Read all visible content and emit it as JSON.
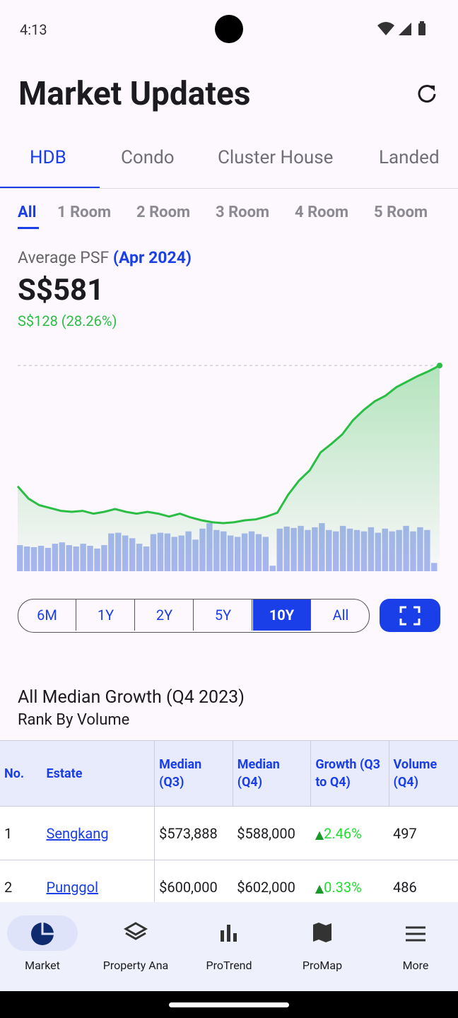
{
  "status_bar": {
    "time": "4:13"
  },
  "header": {
    "title": "Market Updates"
  },
  "tabs": {
    "items": [
      "HDB",
      "Condo",
      "Cluster House",
      "Landed"
    ],
    "selected": 0
  },
  "room_tabs": {
    "items": [
      "All",
      "1 Room",
      "2 Room",
      "3 Room",
      "4 Room",
      "5 Room"
    ],
    "selected": 0
  },
  "summary": {
    "label": "Average PSF",
    "period": "(Apr 2024)",
    "value": "S$581",
    "change": "S$128 (28.26%)"
  },
  "chart_data": {
    "type": "line",
    "color": "#2bbd45",
    "values": [
      453,
      440,
      433,
      430,
      427,
      426,
      427,
      424,
      426,
      429,
      426,
      424,
      426,
      424,
      421,
      424,
      420,
      417,
      415,
      414,
      415,
      417,
      418,
      421,
      425,
      444,
      459,
      470,
      489,
      498,
      508,
      523,
      534,
      543,
      549,
      558,
      564,
      570,
      575,
      581
    ],
    "volume_color": "#aab5f2",
    "volume_values": [
      38,
      36,
      35,
      37,
      34,
      40,
      42,
      38,
      36,
      40,
      37,
      33,
      38,
      55,
      56,
      52,
      48,
      40,
      36,
      54,
      56,
      55,
      50,
      52,
      58,
      46,
      62,
      70,
      60,
      58,
      52,
      50,
      55,
      58,
      54,
      50,
      8,
      62,
      65,
      63,
      66,
      60,
      64,
      70,
      60,
      58,
      66,
      62,
      60,
      58,
      64,
      56,
      62,
      58,
      60,
      66,
      58,
      64,
      60,
      12
    ]
  },
  "range_buttons": {
    "items": [
      "6M",
      "1Y",
      "2Y",
      "5Y",
      "10Y",
      "All"
    ],
    "selected": 4
  },
  "section": {
    "title": "All Median Growth (Q4 2023)",
    "subtitle": "Rank By Volume"
  },
  "table": {
    "columns": [
      "No.",
      "Estate",
      "Median (Q3)",
      "Median (Q4)",
      "Growth (Q3 to Q4)",
      "Volume (Q4)"
    ],
    "rows": [
      [
        "1",
        "Sengkang",
        "$573,888",
        "$588,000",
        "2.46%",
        "497"
      ],
      [
        "2",
        "Punggol",
        "$600,000",
        "$602,000",
        "0.33%",
        "486"
      ]
    ]
  },
  "nav": {
    "items": [
      "Market",
      "Property Ana",
      "ProTrend",
      "ProMap",
      "More"
    ],
    "selected": 0
  }
}
